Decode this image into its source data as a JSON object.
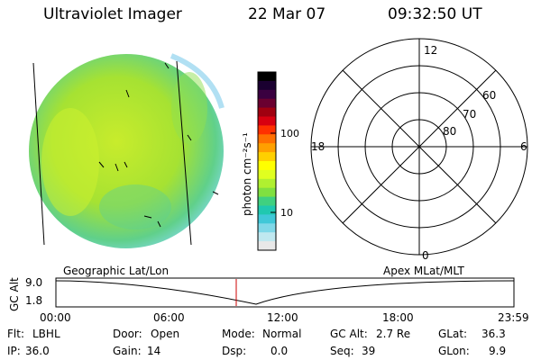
{
  "header": {
    "instrument": "Ultraviolet Imager",
    "date": "22 Mar 07",
    "time": "09:32:50 UT"
  },
  "colorbar": {
    "unit_label": "photon cm⁻²s⁻¹",
    "ticks": [
      "100",
      "10"
    ],
    "colors": [
      "#000000",
      "#1a0030",
      "#3a0040",
      "#6a0030",
      "#a00010",
      "#d80010",
      "#ff3000",
      "#ff7000",
      "#ffa000",
      "#ffd000",
      "#ffff00",
      "#e0ff20",
      "#b0f030",
      "#80e040",
      "#40d080",
      "#20c8b0",
      "#40c8d8",
      "#80d8e8",
      "#c0e8f0",
      "#e8e8e8"
    ]
  },
  "polar_plot": {
    "mlt_labels": [
      "12",
      "18",
      "6",
      "0"
    ],
    "lat_labels": [
      "60",
      "70",
      "80"
    ]
  },
  "timeline": {
    "left_label": "Geographic Lat/Lon",
    "right_label": "Apex MLat/MLT",
    "axis_label": "GC Alt",
    "y_ticks": [
      "9.0",
      "1.8"
    ],
    "x_ticks": [
      "00:00",
      "06:00",
      "12:00",
      "18:00",
      "23:59"
    ]
  },
  "status": {
    "row1": [
      {
        "key": "Flt:",
        "value": "LBHL"
      },
      {
        "key": "Door:",
        "value": "Open"
      },
      {
        "key": "Mode:",
        "value": "Normal"
      },
      {
        "key": "GC Alt:",
        "value": "2.7 Re"
      },
      {
        "key": "GLat:",
        "value": "36.3"
      }
    ],
    "row2": [
      {
        "key": "IP:",
        "value": "36.0"
      },
      {
        "key": "Gain:",
        "value": "14"
      },
      {
        "key": "Dsp:",
        "value": "0.0"
      },
      {
        "key": "Seq:",
        "value": "39"
      },
      {
        "key": "GLon:",
        "value": "9.9"
      }
    ]
  }
}
